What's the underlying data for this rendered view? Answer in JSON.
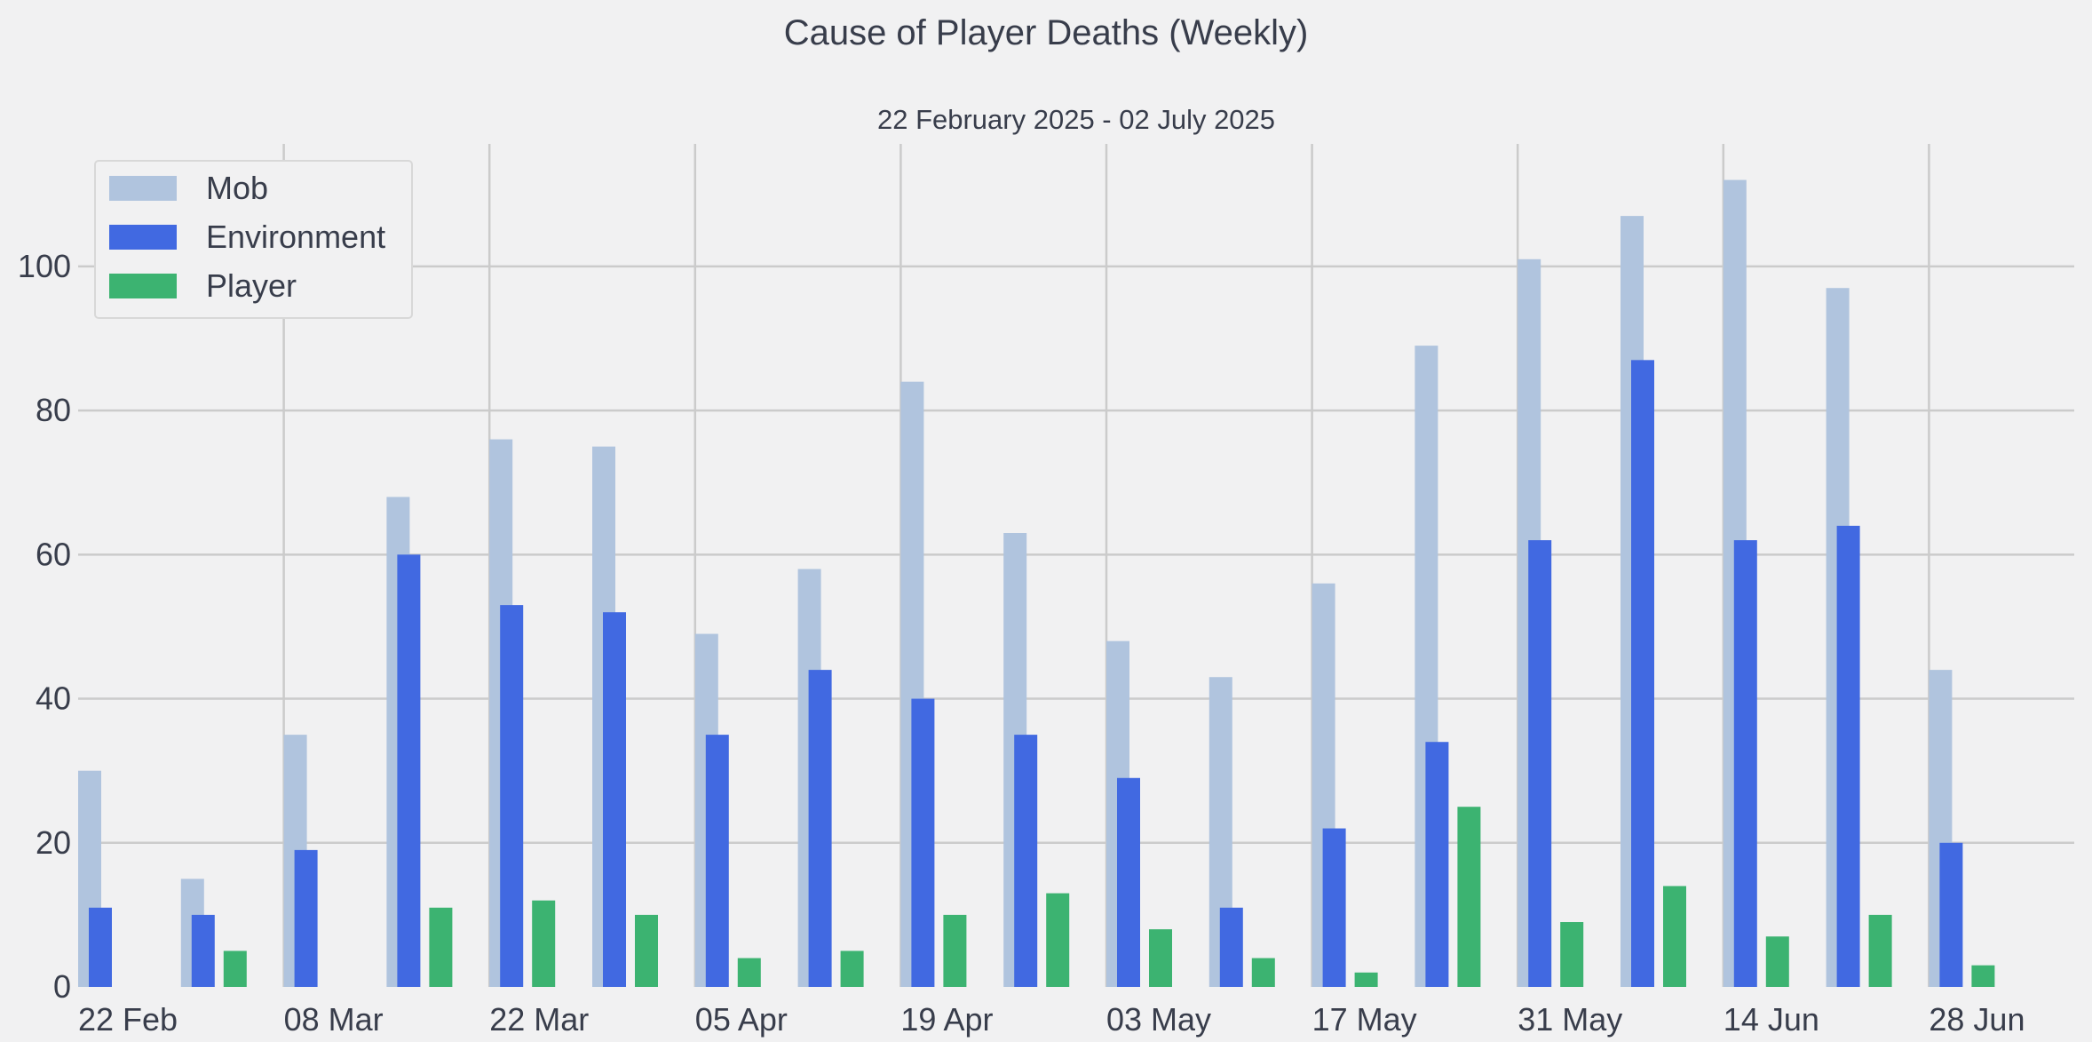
{
  "chart_data": {
    "type": "bar",
    "title": "Cause of Player Deaths (Weekly)",
    "subtitle": "22 February 2025 - 02 July 2025",
    "xlabel": "",
    "ylabel": "",
    "ylim": [
      0,
      117
    ],
    "y_ticks": [
      0,
      20,
      40,
      60,
      80,
      100
    ],
    "x_tick_labels": [
      "22 Feb",
      "08 Mar",
      "22 Mar",
      "05 Apr",
      "19 Apr",
      "03 May",
      "17 May",
      "31 May",
      "14 Jun",
      "28 Jun"
    ],
    "grid": true,
    "legend_position": "top-left",
    "categories": [
      "2025-02-22",
      "2025-03-01",
      "2025-03-08",
      "2025-03-15",
      "2025-03-22",
      "2025-03-29",
      "2025-04-05",
      "2025-04-12",
      "2025-04-19",
      "2025-04-26",
      "2025-05-03",
      "2025-05-10",
      "2025-05-17",
      "2025-05-24",
      "2025-05-31",
      "2025-06-07",
      "2025-06-14",
      "2025-06-21",
      "2025-06-28"
    ],
    "series": [
      {
        "name": "Mob",
        "color": "#b0c4de",
        "values": [
          30,
          15,
          35,
          68,
          76,
          75,
          49,
          58,
          84,
          63,
          48,
          43,
          56,
          89,
          101,
          107,
          112,
          97,
          44
        ]
      },
      {
        "name": "Environment",
        "color": "#4169e1",
        "values": [
          11,
          10,
          19,
          60,
          53,
          52,
          35,
          44,
          40,
          35,
          29,
          11,
          22,
          34,
          62,
          87,
          62,
          64,
          20
        ]
      },
      {
        "name": "Player",
        "color": "#3cb371",
        "values": [
          0,
          5,
          0,
          11,
          12,
          10,
          4,
          5,
          10,
          13,
          8,
          4,
          2,
          25,
          9,
          14,
          7,
          10,
          3
        ]
      }
    ]
  }
}
